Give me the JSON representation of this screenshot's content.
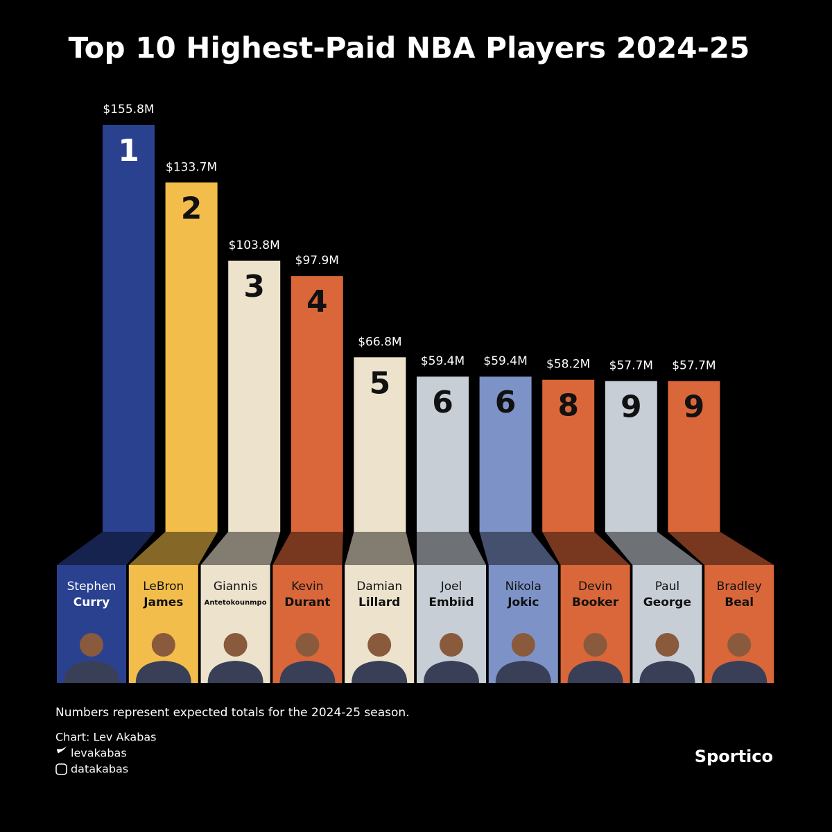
{
  "chart_data": {
    "type": "bar",
    "title": "Top 10 Highest-Paid NBA Players 2024-25",
    "first_names": [
      "Stephen",
      "LeBron",
      "Giannis",
      "Kevin",
      "Damian",
      "Joel",
      "Nikola",
      "Devin",
      "Paul",
      "Bradley"
    ],
    "last_names": [
      "Curry",
      "James",
      "Antetokounmpo",
      "Durant",
      "Lillard",
      "Embiid",
      "Jokic",
      "Booker",
      "George",
      "Beal"
    ],
    "ranks": [
      1,
      2,
      3,
      4,
      5,
      6,
      6,
      8,
      9,
      9
    ],
    "values": [
      155.8,
      133.7,
      103.8,
      97.9,
      66.8,
      59.4,
      59.4,
      58.2,
      57.7,
      57.7
    ],
    "value_labels": [
      "$155.8M",
      "$133.7M",
      "$103.8M",
      "$97.9M",
      "$66.8M",
      "$59.4M",
      "$59.4M",
      "$58.2M",
      "$57.7M",
      "$57.7M"
    ],
    "colors": [
      "#2a4190",
      "#f2bd4a",
      "#ede3cd",
      "#d9673a",
      "#ede3cd",
      "#c8ced6",
      "#7d93c7",
      "#d9673a",
      "#c8ced6",
      "#d9673a"
    ],
    "note": "Numbers represent expected totals for the 2024-25 season.",
    "credit": "Chart: Lev Akabas",
    "twitter": "levakabas",
    "instagram": "datakabas",
    "brand": "Sportico"
  }
}
